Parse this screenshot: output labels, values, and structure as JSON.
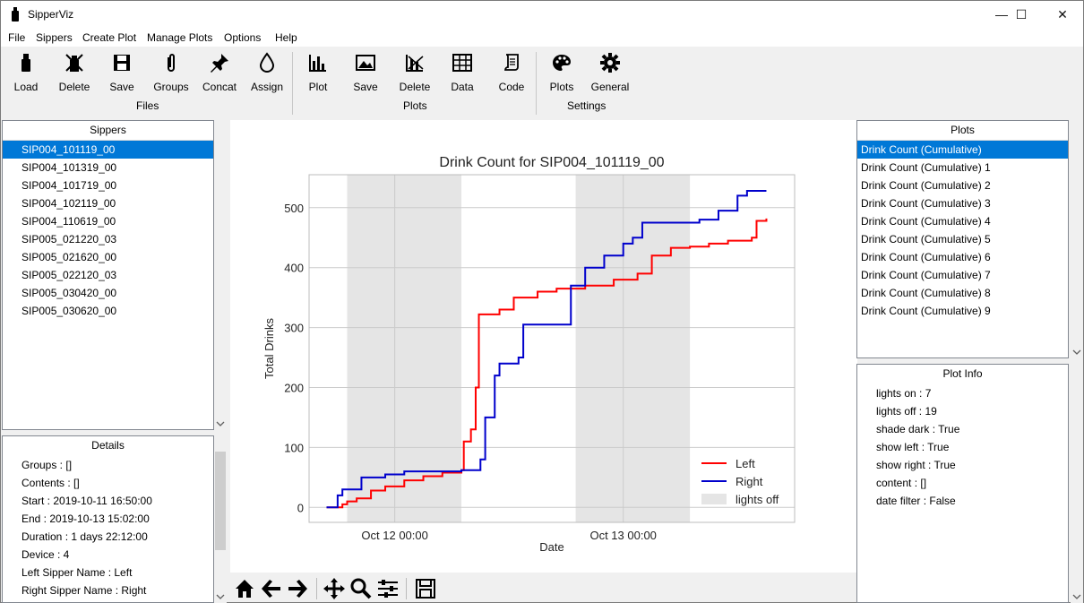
{
  "window": {
    "title": "SipperViz",
    "minimize": "—",
    "maximize": "☐",
    "close": "✕"
  },
  "menu": [
    "File",
    "Sippers",
    "Create Plot",
    "Manage Plots",
    "Options",
    "Help"
  ],
  "toolbar": {
    "files_group": "Files",
    "plots_group": "Plots",
    "settings_group": "Settings",
    "load": "Load",
    "delete": "Delete",
    "save": "Save",
    "groups": "Groups",
    "concat": "Concat",
    "assign": "Assign",
    "plot": "Plot",
    "plot_save": "Save",
    "plot_delete": "Delete",
    "data": "Data",
    "code": "Code",
    "plots_settings": "Plots",
    "general": "General"
  },
  "sippers": {
    "header": "Sippers",
    "items": [
      "SIP004_101119_00",
      "SIP004_101319_00",
      "SIP004_101719_00",
      "SIP004_102119_00",
      "SIP004_110619_00",
      "SIP005_021220_03",
      "SIP005_021620_00",
      "SIP005_022120_03",
      "SIP005_030420_00",
      "SIP005_030620_00"
    ]
  },
  "details": {
    "header": "Details",
    "lines": [
      "Groups : []",
      "Contents : []",
      "Start : 2019-10-11 16:50:00",
      "End : 2019-10-13 15:02:00",
      "Duration : 1 days 22:12:00",
      "Device : 4",
      "Left Sipper Name : Left",
      "Right Sipper Name : Right"
    ]
  },
  "plots": {
    "header": "Plots",
    "items": [
      "Drink Count (Cumulative)",
      "Drink Count (Cumulative) 1",
      "Drink Count (Cumulative) 2",
      "Drink Count (Cumulative) 3",
      "Drink Count (Cumulative) 4",
      "Drink Count (Cumulative) 5",
      "Drink Count (Cumulative) 6",
      "Drink Count (Cumulative) 7",
      "Drink Count (Cumulative) 8",
      "Drink Count (Cumulative) 9"
    ]
  },
  "plot_info": {
    "header": "Plot Info",
    "lines": [
      "lights on : 7",
      "lights off : 19",
      "shade dark : True",
      "show left : True",
      "show right : True",
      "content : []",
      "date filter : False"
    ]
  },
  "colors": {
    "left": "#ff0000",
    "right": "#0000cc",
    "shade": "#e5e5e5",
    "selection": "#0078d7"
  },
  "chart_data": {
    "type": "line",
    "title": "Drink Count for SIP004_101119_00",
    "xlabel": "Date",
    "ylabel": "Total Drinks",
    "ylim": [
      -25,
      555
    ],
    "yticks": [
      0,
      100,
      200,
      300,
      400,
      500
    ],
    "xlim": [
      "2019-10-11 15:00",
      "2019-10-13 18:00"
    ],
    "xticks": [
      {
        "label": "Oct 12 00:00",
        "value": "2019-10-12 00:00"
      },
      {
        "label": "Oct 13 00:00",
        "value": "2019-10-13 00:00"
      }
    ],
    "grid": true,
    "legend_position": "lower-right",
    "shaded_regions": [
      {
        "start": "2019-10-11 19:00",
        "end": "2019-10-12 07:00"
      },
      {
        "start": "2019-10-12 19:00",
        "end": "2019-10-13 07:00"
      }
    ],
    "series": [
      {
        "name": "Left",
        "color": "#ff0000",
        "points": [
          [
            "2019-10-11 16:50",
            0
          ],
          [
            "2019-10-11 18:30",
            5
          ],
          [
            "2019-10-11 19:00",
            10
          ],
          [
            "2019-10-11 20:00",
            15
          ],
          [
            "2019-10-11 21:30",
            28
          ],
          [
            "2019-10-11 23:00",
            35
          ],
          [
            "2019-10-12 01:00",
            45
          ],
          [
            "2019-10-12 03:00",
            52
          ],
          [
            "2019-10-12 05:00",
            58
          ],
          [
            "2019-10-12 07:00",
            62
          ],
          [
            "2019-10-12 07:15",
            110
          ],
          [
            "2019-10-12 08:00",
            130
          ],
          [
            "2019-10-12 08:30",
            200
          ],
          [
            "2019-10-12 08:50",
            322
          ],
          [
            "2019-10-12 11:00",
            330
          ],
          [
            "2019-10-12 12:30",
            350
          ],
          [
            "2019-10-12 15:00",
            360
          ],
          [
            "2019-10-12 17:00",
            365
          ],
          [
            "2019-10-12 20:00",
            370
          ],
          [
            "2019-10-12 23:00",
            380
          ],
          [
            "2019-10-13 01:30",
            390
          ],
          [
            "2019-10-13 03:00",
            420
          ],
          [
            "2019-10-13 05:00",
            433
          ],
          [
            "2019-10-13 07:00",
            435
          ],
          [
            "2019-10-13 09:00",
            440
          ],
          [
            "2019-10-13 11:00",
            445
          ],
          [
            "2019-10-13 13:30",
            450
          ],
          [
            "2019-10-13 14:00",
            478
          ],
          [
            "2019-10-13 15:02",
            482
          ]
        ]
      },
      {
        "name": "Right",
        "color": "#0000cc",
        "points": [
          [
            "2019-10-11 16:50",
            0
          ],
          [
            "2019-10-11 18:00",
            20
          ],
          [
            "2019-10-11 18:30",
            30
          ],
          [
            "2019-10-11 20:00",
            30
          ],
          [
            "2019-10-11 20:30",
            50
          ],
          [
            "2019-10-11 23:00",
            55
          ],
          [
            "2019-10-12 01:00",
            60
          ],
          [
            "2019-10-12 07:00",
            62
          ],
          [
            "2019-10-12 09:00",
            80
          ],
          [
            "2019-10-12 09:30",
            150
          ],
          [
            "2019-10-12 10:30",
            220
          ],
          [
            "2019-10-12 11:00",
            240
          ],
          [
            "2019-10-12 13:00",
            250
          ],
          [
            "2019-10-12 13:30",
            305
          ],
          [
            "2019-10-12 18:00",
            305
          ],
          [
            "2019-10-12 18:30",
            370
          ],
          [
            "2019-10-12 20:00",
            400
          ],
          [
            "2019-10-12 22:00",
            420
          ],
          [
            "2019-10-13 00:00",
            440
          ],
          [
            "2019-10-13 01:00",
            450
          ],
          [
            "2019-10-13 02:00",
            475
          ],
          [
            "2019-10-13 08:00",
            480
          ],
          [
            "2019-10-13 10:00",
            495
          ],
          [
            "2019-10-13 12:00",
            520
          ],
          [
            "2019-10-13 13:00",
            528
          ],
          [
            "2019-10-13 15:02",
            528
          ]
        ]
      }
    ],
    "legend": [
      {
        "label": "Left",
        "type": "line",
        "color": "#ff0000"
      },
      {
        "label": "Right",
        "type": "line",
        "color": "#0000cc"
      },
      {
        "label": "lights off",
        "type": "patch",
        "color": "#e5e5e5"
      }
    ]
  }
}
